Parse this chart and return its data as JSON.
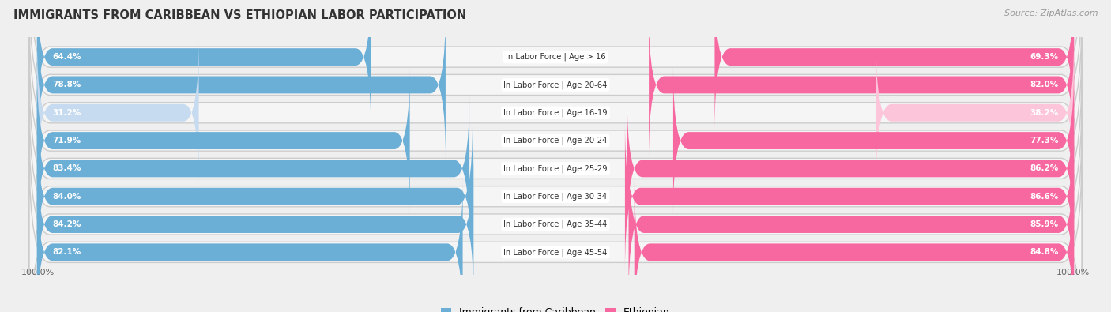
{
  "title": "IMMIGRANTS FROM CARIBBEAN VS ETHIOPIAN LABOR PARTICIPATION",
  "source": "Source: ZipAtlas.com",
  "categories": [
    "In Labor Force | Age > 16",
    "In Labor Force | Age 20-64",
    "In Labor Force | Age 16-19",
    "In Labor Force | Age 20-24",
    "In Labor Force | Age 25-29",
    "In Labor Force | Age 30-34",
    "In Labor Force | Age 35-44",
    "In Labor Force | Age 45-54"
  ],
  "caribbean_values": [
    64.4,
    78.8,
    31.2,
    71.9,
    83.4,
    84.0,
    84.2,
    82.1
  ],
  "ethiopian_values": [
    69.3,
    82.0,
    38.2,
    77.3,
    86.2,
    86.6,
    85.9,
    84.8
  ],
  "caribbean_color": "#6baed6",
  "ethiopian_color": "#f768a1",
  "caribbean_color_light": "#c6dbef",
  "ethiopian_color_light": "#fcc5da",
  "row_bg_color": "#e8e8e8",
  "row_inner_color": "#f5f5f5",
  "bg_color": "#efefef",
  "label_white": "#ffffff",
  "label_dark": "#666666",
  "max_value": 100.0,
  "bar_height": 0.62,
  "legend_caribbean": "Immigrants from Caribbean",
  "legend_ethiopian": "Ethiopian",
  "threshold_light": 50
}
